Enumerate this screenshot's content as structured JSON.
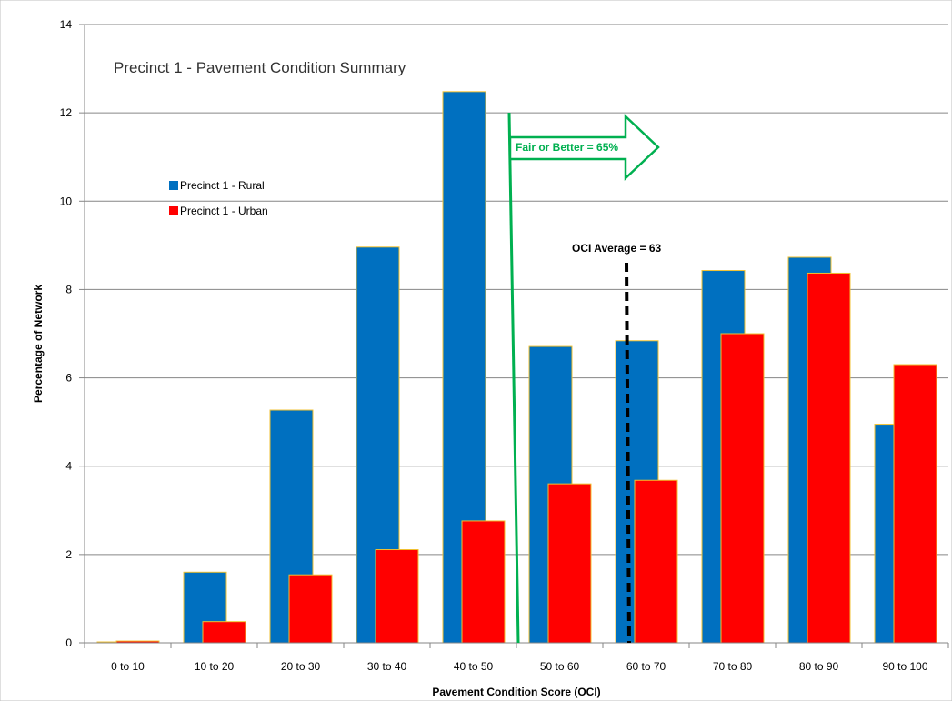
{
  "chart_data": {
    "type": "bar",
    "title": "Precinct 1 - Pavement Condition Summary",
    "xlabel": "Pavement Condition Score (OCI)",
    "ylabel": "Percentage of Network",
    "ylim": [
      0,
      14
    ],
    "yticks": [
      0,
      2,
      4,
      6,
      8,
      10,
      12,
      14
    ],
    "grid": true,
    "legend_position": "upper-left",
    "categories": [
      "0 to 10",
      "10 to 20",
      "20 to 30",
      "30 to 40",
      "40 to 50",
      "50 to 60",
      "60 to 70",
      "70 to 80",
      "80 to 90",
      "90 to 100"
    ],
    "series": [
      {
        "name": "Precinct 1 - Rural",
        "color": "#0070C0",
        "values": [
          0.02,
          1.6,
          5.27,
          8.96,
          12.48,
          6.71,
          6.84,
          8.43,
          8.73,
          4.95
        ]
      },
      {
        "name": "Precinct 1 - Urban",
        "color": "#FF0000",
        "values": [
          0.04,
          0.48,
          1.54,
          2.11,
          2.76,
          3.6,
          3.68,
          7.0,
          8.37,
          6.3
        ]
      }
    ],
    "annotations": [
      {
        "text": "Fair or Better = 65%",
        "color": "#00B050",
        "type": "vertical-line-with-right-arrow",
        "x_value": 55
      },
      {
        "text": "OCI Average = 63",
        "color": "#000000",
        "type": "dashed-vertical-line",
        "x_value": 63
      }
    ]
  }
}
